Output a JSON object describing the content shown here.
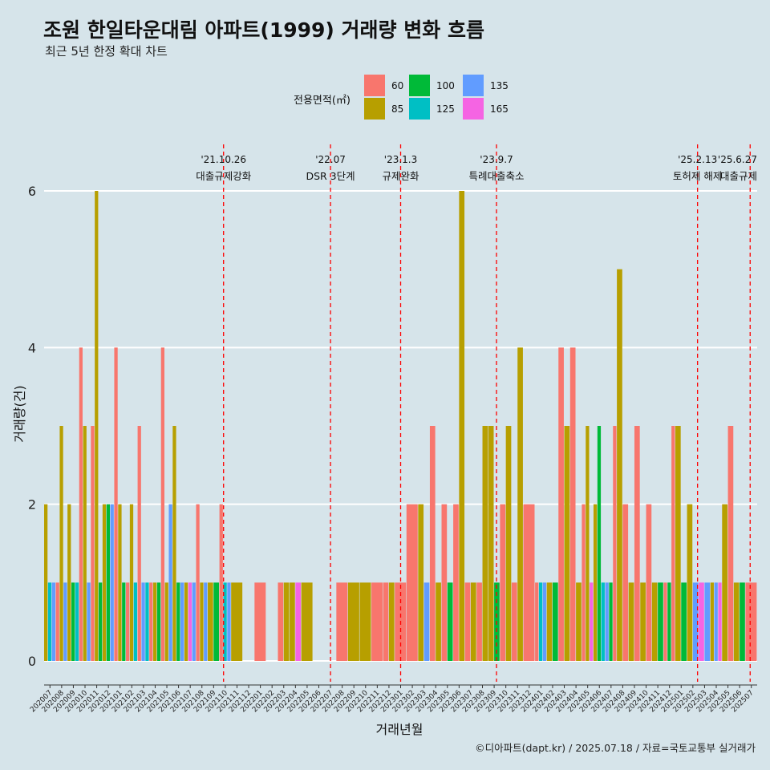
{
  "header": {
    "title": "조원 한일타운대림 아파트(1999) 거래량 변화 흐름",
    "subtitle": "최근 5년 한정 확대 차트"
  },
  "footer": {
    "credit": "©디아파트(dapt.kr) / 2025.07.18 / 자료=국토교통부 실거래가"
  },
  "colors": {
    "background": "#d6e4ea",
    "gridline": "#ffffff",
    "event_line": "#ff0000",
    "size_60": "#f8766d",
    "size_85": "#b79f00",
    "size_100": "#00ba38",
    "size_125": "#00bfc4",
    "size_135": "#619cff",
    "size_165": "#f564e3"
  },
  "chart_data": {
    "type": "bar",
    "title": "조원 한일타운대림 아파트(1999) 거래량 변화 흐름",
    "xlabel": "거래년월",
    "ylabel": "거래량(건)",
    "ylim": [
      0,
      6.3
    ],
    "yticks": [
      0,
      2,
      4,
      6
    ],
    "grid": true,
    "legend": {
      "title": "전용면적(㎡)",
      "position": "top",
      "entries": [
        {
          "key": "60",
          "label": "60",
          "color": "#f8766d"
        },
        {
          "key": "85",
          "label": "85",
          "color": "#b79f00"
        },
        {
          "key": "100",
          "label": "100",
          "color": "#00ba38"
        },
        {
          "key": "125",
          "label": "125",
          "color": "#00bfc4"
        },
        {
          "key": "135",
          "label": "135",
          "color": "#619cff"
        },
        {
          "key": "165",
          "label": "165",
          "color": "#f564e3"
        }
      ]
    },
    "categories": [
      "202007",
      "202008",
      "202009",
      "202010",
      "202011",
      "202012",
      "202101",
      "202102",
      "202103",
      "202104",
      "202105",
      "202106",
      "202107",
      "202108",
      "202109",
      "202110",
      "202111",
      "202112",
      "202201",
      "202202",
      "202203",
      "202204",
      "202205",
      "202206",
      "202207",
      "202208",
      "202209",
      "202210",
      "202211",
      "202212",
      "202301",
      "202302",
      "202303",
      "202304",
      "202305",
      "202306",
      "202307",
      "202308",
      "202309",
      "202310",
      "202311",
      "202312",
      "202401",
      "202402",
      "202403",
      "202404",
      "202405",
      "202406",
      "202407",
      "202408",
      "202409",
      "202410",
      "202411",
      "202412",
      "202501",
      "202502",
      "202503",
      "202504",
      "202505",
      "202506",
      "202507"
    ],
    "monthly": [
      [
        [
          "85",
          2
        ],
        [
          "125",
          1
        ],
        [
          "135",
          1
        ]
      ],
      [
        [
          "60",
          1
        ],
        [
          "85",
          3
        ],
        [
          "135",
          1
        ]
      ],
      [
        [
          "85",
          2
        ],
        [
          "100",
          1
        ],
        [
          "125",
          1
        ]
      ],
      [
        [
          "60",
          4
        ],
        [
          "85",
          3
        ],
        [
          "135",
          1
        ]
      ],
      [
        [
          "60",
          3
        ],
        [
          "85",
          6
        ],
        [
          "100",
          1
        ]
      ],
      [
        [
          "85",
          2
        ],
        [
          "100",
          2
        ],
        [
          "135",
          2
        ]
      ],
      [
        [
          "60",
          4
        ],
        [
          "85",
          2
        ],
        [
          "100",
          1
        ]
      ],
      [
        [
          "60",
          1
        ],
        [
          "85",
          2
        ],
        [
          "125",
          1
        ]
      ],
      [
        [
          "60",
          3
        ],
        [
          "135",
          1
        ],
        [
          "125",
          1
        ]
      ],
      [
        [
          "60",
          1
        ],
        [
          "85",
          1
        ],
        [
          "100",
          1
        ]
      ],
      [
        [
          "60",
          4
        ],
        [
          "85",
          1
        ],
        [
          "135",
          2
        ]
      ],
      [
        [
          "85",
          3
        ],
        [
          "100",
          1
        ],
        [
          "135",
          1
        ]
      ],
      [
        [
          "85",
          1
        ],
        [
          "165",
          1
        ],
        [
          "135",
          1
        ]
      ],
      [
        [
          "60",
          2
        ],
        [
          "85",
          1
        ],
        [
          "135",
          1
        ]
      ],
      [
        [
          "85",
          1
        ],
        [
          "100",
          1
        ]
      ],
      [
        [
          "60",
          2
        ],
        [
          "125",
          1
        ],
        [
          "135",
          1
        ]
      ],
      [
        [
          "85",
          1
        ]
      ],
      [],
      [
        [
          "60",
          1
        ]
      ],
      [],
      [
        [
          "60",
          1
        ],
        [
          "85",
          1
        ]
      ],
      [
        [
          "85",
          1
        ],
        [
          "165",
          1
        ]
      ],
      [
        [
          "85",
          1
        ]
      ],
      [],
      [],
      [
        [
          "60",
          1
        ]
      ],
      [
        [
          "85",
          1
        ]
      ],
      [
        [
          "85",
          1
        ]
      ],
      [
        [
          "60",
          1
        ]
      ],
      [
        [
          "60",
          1
        ],
        [
          "85",
          1
        ]
      ],
      [
        [
          "60",
          1
        ]
      ],
      [
        [
          "60",
          2
        ]
      ],
      [
        [
          "85",
          2
        ],
        [
          "135",
          1
        ]
      ],
      [
        [
          "60",
          3
        ],
        [
          "85",
          1
        ]
      ],
      [
        [
          "60",
          2
        ],
        [
          "100",
          1
        ]
      ],
      [
        [
          "60",
          2
        ],
        [
          "85",
          6
        ]
      ],
      [
        [
          "60",
          1
        ],
        [
          "85",
          1
        ]
      ],
      [
        [
          "60",
          1
        ],
        [
          "85",
          3
        ]
      ],
      [
        [
          "85",
          3
        ],
        [
          "100",
          1
        ]
      ],
      [
        [
          "60",
          2
        ],
        [
          "85",
          3
        ]
      ],
      [
        [
          "60",
          1
        ],
        [
          "85",
          4
        ]
      ],
      [
        [
          "60",
          2
        ]
      ],
      [
        [
          "60",
          1
        ],
        [
          "125",
          1
        ],
        [
          "135",
          1
        ]
      ],
      [
        [
          "85",
          1
        ],
        [
          "100",
          1
        ]
      ],
      [
        [
          "60",
          4
        ],
        [
          "85",
          3
        ]
      ],
      [
        [
          "60",
          4
        ],
        [
          "85",
          1
        ]
      ],
      [
        [
          "60",
          2
        ],
        [
          "85",
          3
        ],
        [
          "165",
          1
        ]
      ],
      [
        [
          "85",
          2
        ],
        [
          "100",
          3
        ],
        [
          "125",
          1
        ]
      ],
      [
        [
          "135",
          1
        ],
        [
          "100",
          1
        ],
        [
          "60",
          3
        ]
      ],
      [
        [
          "85",
          5
        ],
        [
          "60",
          2
        ]
      ],
      [
        [
          "85",
          1
        ],
        [
          "60",
          3
        ]
      ],
      [
        [
          "85",
          1
        ],
        [
          "60",
          2
        ]
      ],
      [
        [
          "85",
          1
        ],
        [
          "100",
          1
        ]
      ],
      [
        [
          "60",
          1
        ],
        [
          "100",
          1
        ],
        [
          "60",
          3
        ]
      ],
      [
        [
          "85",
          3
        ],
        [
          "100",
          1
        ]
      ],
      [
        [
          "85",
          2
        ],
        [
          "135",
          1
        ]
      ],
      [
        [
          "165",
          1
        ],
        [
          "135",
          1
        ]
      ],
      [
        [
          "85",
          1
        ],
        [
          "135",
          1
        ],
        [
          "165",
          1
        ]
      ],
      [
        [
          "85",
          2
        ],
        [
          "60",
          3
        ]
      ],
      [
        [
          "85",
          1
        ],
        [
          "100",
          1
        ]
      ],
      [
        [
          "60",
          1
        ]
      ]
    ],
    "events": [
      {
        "month": "202110",
        "offset": -0.15,
        "date": "'21.10.26",
        "label": "대출규제강화"
      },
      {
        "month": "202207",
        "offset": 0,
        "date": "'22.07",
        "label": "DSR 3단계"
      },
      {
        "month": "202301",
        "offset": 0,
        "date": "'23.1.3",
        "label": "규제완화"
      },
      {
        "month": "202309",
        "offset": 0.2,
        "date": "'23.9.7",
        "label": "특례대출축소"
      },
      {
        "month": "202502",
        "offset": 0.4,
        "date": "'25.2.13",
        "label": "토허제 해제"
      },
      {
        "month": "202506",
        "offset": 0.9,
        "date": "'25.6.27",
        "label": "대출규제"
      }
    ]
  }
}
